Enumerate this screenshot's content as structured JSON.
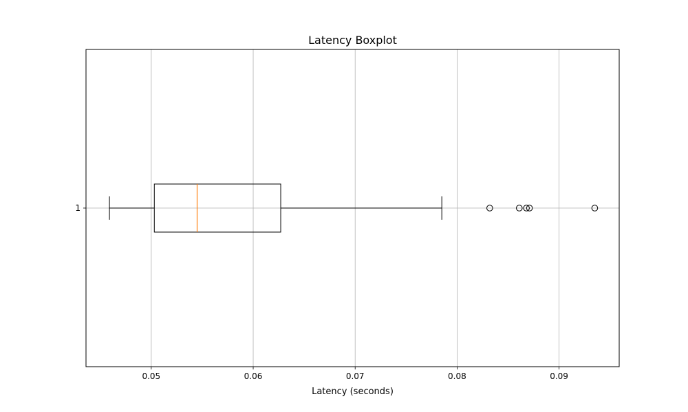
{
  "chart_data": {
    "type": "boxplot",
    "orientation": "horizontal",
    "title": "Latency Boxplot",
    "xlabel": "Latency (seconds)",
    "ylabel": "",
    "xlim": [
      0.0436,
      0.0959
    ],
    "xticks": [
      0.05,
      0.06,
      0.07,
      0.08,
      0.09
    ],
    "xtick_labels": [
      "0.05",
      "0.06",
      "0.07",
      "0.08",
      "0.09"
    ],
    "grid": true,
    "categories": [
      "1"
    ],
    "boxes": [
      {
        "label": "1",
        "whisker_low": 0.0459,
        "q1": 0.0503,
        "median": 0.0545,
        "q3": 0.0627,
        "whisker_high": 0.0785,
        "outliers": [
          0.0832,
          0.0861,
          0.0868,
          0.0871,
          0.0935
        ]
      }
    ],
    "colors": {
      "box": "#000000",
      "median": "#ff7f0e",
      "grid": "#b0b0b0",
      "outlier": "#000000"
    }
  }
}
